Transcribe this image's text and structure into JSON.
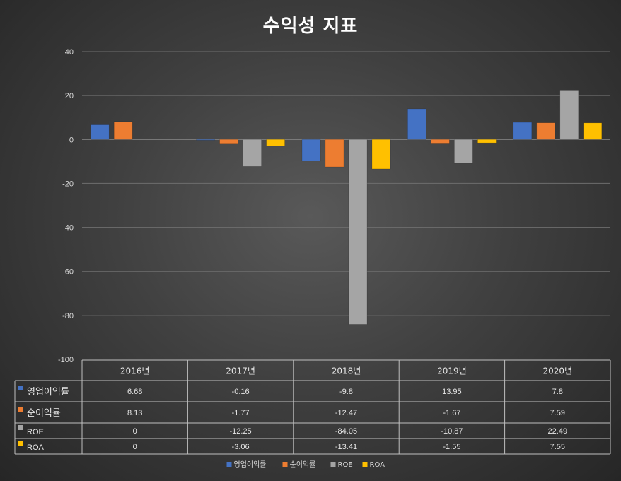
{
  "chart_data": {
    "type": "bar",
    "title": "수익성 지표",
    "categories": [
      "2016년",
      "2017년",
      "2018년",
      "2019년",
      "2020년"
    ],
    "ylim": [
      -100,
      40
    ],
    "yticks": [
      40,
      20,
      0,
      -20,
      -40,
      -60,
      -80,
      -100
    ],
    "grid": true,
    "legend": "bottom",
    "data_table": true,
    "series": [
      {
        "name": "영업이익률",
        "color": "#4472c4",
        "values": [
          6.68,
          -0.16,
          -9.8,
          13.95,
          7.8
        ],
        "display": [
          "6.68",
          "-0.16",
          "-9.8",
          "13.95",
          "7.8"
        ]
      },
      {
        "name": "순이익률",
        "color": "#ed7d31",
        "values": [
          8.13,
          -1.77,
          -12.47,
          -1.67,
          7.59
        ],
        "display": [
          "8.13",
          "-1.77",
          "-12.47",
          "-1.67",
          "7.59"
        ]
      },
      {
        "name": "ROE",
        "color": "#a5a5a5",
        "values": [
          0,
          -12.25,
          -84.05,
          -10.87,
          22.49
        ],
        "display": [
          "0",
          "-12.25",
          "-84.05",
          "-10.87",
          "22.49"
        ]
      },
      {
        "name": "ROA",
        "color": "#ffc000",
        "values": [
          0,
          -3.06,
          -13.41,
          -1.55,
          7.55
        ],
        "display": [
          "0",
          "-3.06",
          "-13.41",
          "-1.55",
          "7.55"
        ]
      }
    ]
  }
}
